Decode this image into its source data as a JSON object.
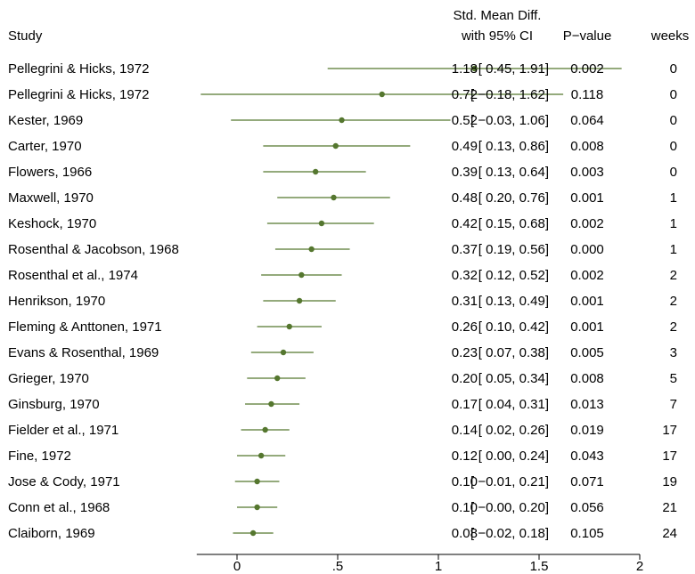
{
  "chart_data": {
    "type": "forest",
    "headers": {
      "study": "Study",
      "effect_line1": "Std. Mean Diff.",
      "effect_line2": "with 95% CI",
      "pvalue": "P−value",
      "weeks": "weeks"
    },
    "x_axis": {
      "range": [
        -0.2,
        2
      ],
      "ticks": [
        {
          "value": 0,
          "label": "0"
        },
        {
          "value": 0.5,
          "label": ".5"
        },
        {
          "value": 1,
          "label": "1"
        },
        {
          "value": 1.5,
          "label": "1.5"
        },
        {
          "value": 2,
          "label": "2"
        }
      ]
    },
    "marker_color": "#55772f",
    "studies": [
      {
        "study": "Pellegrini & Hicks, 1972",
        "estimate": 1.18,
        "lower": 0.45,
        "upper": 1.91,
        "est_text": "1.18",
        "ci_text": "[ 0.45, 1.91]",
        "pvalue": "0.002",
        "weeks": "0"
      },
      {
        "study": "Pellegrini & Hicks, 1972",
        "estimate": 0.72,
        "lower": -0.18,
        "upper": 1.62,
        "est_text": "0.72",
        "ci_text": "[ −0.18, 1.62]",
        "pvalue": "0.118",
        "weeks": "0"
      },
      {
        "study": "Kester, 1969",
        "estimate": 0.52,
        "lower": -0.03,
        "upper": 1.06,
        "est_text": "0.52",
        "ci_text": "[ −0.03, 1.06]",
        "pvalue": "0.064",
        "weeks": "0"
      },
      {
        "study": "Carter, 1970",
        "estimate": 0.49,
        "lower": 0.13,
        "upper": 0.86,
        "est_text": "0.49",
        "ci_text": "[ 0.13, 0.86]",
        "pvalue": "0.008",
        "weeks": "0"
      },
      {
        "study": "Flowers, 1966",
        "estimate": 0.39,
        "lower": 0.13,
        "upper": 0.64,
        "est_text": "0.39",
        "ci_text": "[ 0.13, 0.64]",
        "pvalue": "0.003",
        "weeks": "0"
      },
      {
        "study": "Maxwell, 1970",
        "estimate": 0.48,
        "lower": 0.2,
        "upper": 0.76,
        "est_text": "0.48",
        "ci_text": "[ 0.20, 0.76]",
        "pvalue": "0.001",
        "weeks": "1"
      },
      {
        "study": "Keshock, 1970",
        "estimate": 0.42,
        "lower": 0.15,
        "upper": 0.68,
        "est_text": "0.42",
        "ci_text": "[ 0.15, 0.68]",
        "pvalue": "0.002",
        "weeks": "1"
      },
      {
        "study": "Rosenthal & Jacobson, 1968",
        "estimate": 0.37,
        "lower": 0.19,
        "upper": 0.56,
        "est_text": "0.37",
        "ci_text": "[ 0.19, 0.56]",
        "pvalue": "0.000",
        "weeks": "1"
      },
      {
        "study": "Rosenthal et al., 1974",
        "estimate": 0.32,
        "lower": 0.12,
        "upper": 0.52,
        "est_text": "0.32",
        "ci_text": "[ 0.12, 0.52]",
        "pvalue": "0.002",
        "weeks": "2"
      },
      {
        "study": "Henrikson, 1970",
        "estimate": 0.31,
        "lower": 0.13,
        "upper": 0.49,
        "est_text": "0.31",
        "ci_text": "[ 0.13, 0.49]",
        "pvalue": "0.001",
        "weeks": "2"
      },
      {
        "study": "Fleming & Anttonen, 1971",
        "estimate": 0.26,
        "lower": 0.1,
        "upper": 0.42,
        "est_text": "0.26",
        "ci_text": "[ 0.10, 0.42]",
        "pvalue": "0.001",
        "weeks": "2"
      },
      {
        "study": "Evans & Rosenthal, 1969",
        "estimate": 0.23,
        "lower": 0.07,
        "upper": 0.38,
        "est_text": "0.23",
        "ci_text": "[ 0.07, 0.38]",
        "pvalue": "0.005",
        "weeks": "3"
      },
      {
        "study": "Grieger, 1970",
        "estimate": 0.2,
        "lower": 0.05,
        "upper": 0.34,
        "est_text": "0.20",
        "ci_text": "[ 0.05, 0.34]",
        "pvalue": "0.008",
        "weeks": "5"
      },
      {
        "study": "Ginsburg, 1970",
        "estimate": 0.17,
        "lower": 0.04,
        "upper": 0.31,
        "est_text": "0.17",
        "ci_text": "[ 0.04, 0.31]",
        "pvalue": "0.013",
        "weeks": "7"
      },
      {
        "study": "Fielder et al., 1971",
        "estimate": 0.14,
        "lower": 0.02,
        "upper": 0.26,
        "est_text": "0.14",
        "ci_text": "[ 0.02, 0.26]",
        "pvalue": "0.019",
        "weeks": "17"
      },
      {
        "study": "Fine, 1972",
        "estimate": 0.12,
        "lower": 0.0,
        "upper": 0.24,
        "est_text": "0.12",
        "ci_text": "[ 0.00, 0.24]",
        "pvalue": "0.043",
        "weeks": "17"
      },
      {
        "study": "Jose & Cody, 1971",
        "estimate": 0.1,
        "lower": -0.01,
        "upper": 0.21,
        "est_text": "0.10",
        "ci_text": "[ −0.01, 0.21]",
        "pvalue": "0.071",
        "weeks": "19"
      },
      {
        "study": "Conn et al., 1968",
        "estimate": 0.1,
        "lower": -0.0,
        "upper": 0.2,
        "est_text": "0.10",
        "ci_text": "[ −0.00, 0.20]",
        "pvalue": "0.056",
        "weeks": "21"
      },
      {
        "study": "Claiborn, 1969",
        "estimate": 0.08,
        "lower": -0.02,
        "upper": 0.18,
        "est_text": "0.08",
        "ci_text": "[ −0.02, 0.18]",
        "pvalue": "0.105",
        "weeks": "24"
      }
    ]
  }
}
